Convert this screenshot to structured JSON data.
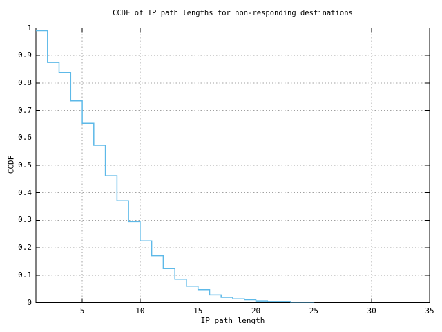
{
  "figure": {
    "background": "#ffffff"
  },
  "chart_data": {
    "type": "line",
    "subtype": "step-ccdf",
    "title": "CCDF of IP path lengths for non-responding destinations",
    "xlabel": "IP path length",
    "ylabel": "CCDF",
    "xlim": [
      1,
      35
    ],
    "ylim": [
      0,
      1
    ],
    "xticks": [
      5,
      10,
      15,
      20,
      25,
      30,
      35
    ],
    "yticks": [
      "0",
      "0.1",
      "0.2",
      "0.3",
      "0.4",
      "0.5",
      "0.6",
      "0.7",
      "0.8",
      "0.9",
      "1"
    ],
    "grid": true,
    "legend": "none",
    "line_color": "#5db9e8",
    "grid_color": "#a0a0a0",
    "axis_color": "#000000",
    "x": [
      1,
      2,
      3,
      4,
      5,
      6,
      7,
      8,
      9,
      10,
      11,
      12,
      13,
      14,
      15,
      16,
      17,
      18,
      19,
      20,
      21,
      22,
      23,
      24,
      25
    ],
    "ccdf": [
      0.99,
      0.875,
      0.838,
      0.735,
      0.653,
      0.573,
      0.462,
      0.371,
      0.295,
      0.225,
      0.171,
      0.124,
      0.085,
      0.06,
      0.047,
      0.028,
      0.019,
      0.013,
      0.01,
      0.006,
      0.004,
      0.004,
      0.002,
      0.002,
      0
    ]
  }
}
